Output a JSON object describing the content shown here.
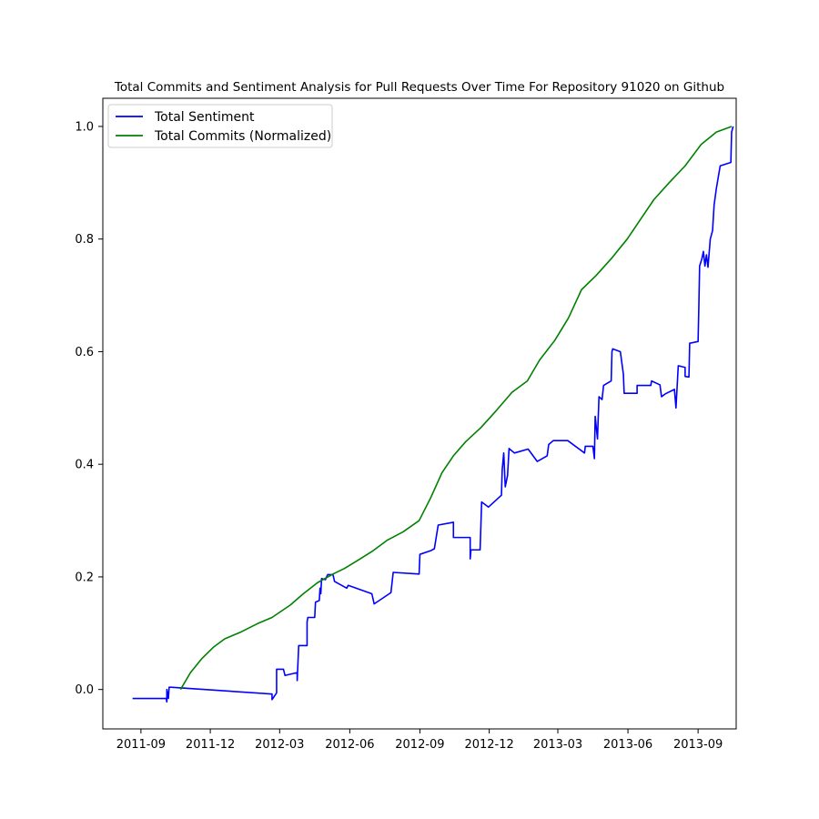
{
  "chart_data": {
    "type": "line",
    "title": "Total Commits and Sentiment Analysis for Pull Requests Over Time For Repository 91020 on Github",
    "xlabel": "",
    "ylabel": "",
    "x_range": [
      "2011-07-13",
      "2013-10-21"
    ],
    "ylim": [
      -0.07,
      1.05
    ],
    "x_ticks": [
      "2011-09",
      "2011-12",
      "2012-03",
      "2012-06",
      "2012-09",
      "2012-12",
      "2013-03",
      "2013-06",
      "2013-09"
    ],
    "y_ticks": [
      "0.0",
      "0.2",
      "0.4",
      "0.6",
      "0.8",
      "1.0"
    ],
    "grid": false,
    "legend_position": "top-left",
    "legend": [
      "Total Sentiment",
      "Total Commits (Normalized)"
    ],
    "series": [
      {
        "name": "Total Sentiment",
        "color": "#0000ff",
        "points": [
          [
            "2011-08-21",
            -0.016
          ],
          [
            "2011-10-04",
            -0.016
          ],
          [
            "2011-10-05",
            -0.022
          ],
          [
            "2011-10-05",
            0.0
          ],
          [
            "2011-10-07",
            -0.016
          ],
          [
            "2011-10-08",
            0.004
          ],
          [
            "2011-10-10",
            0.004
          ],
          [
            "2012-02-20",
            -0.008
          ],
          [
            "2012-02-20",
            -0.018
          ],
          [
            "2012-02-26",
            -0.006
          ],
          [
            "2012-02-26",
            0.036
          ],
          [
            "2012-03-06",
            0.036
          ],
          [
            "2012-03-08",
            0.025
          ],
          [
            "2012-03-24",
            0.03
          ],
          [
            "2012-03-24",
            0.016
          ],
          [
            "2012-03-26",
            0.078
          ],
          [
            "2012-04-06",
            0.078
          ],
          [
            "2012-04-06",
            0.12
          ],
          [
            "2012-04-07",
            0.128
          ],
          [
            "2012-04-16",
            0.128
          ],
          [
            "2012-04-17",
            0.155
          ],
          [
            "2012-04-22",
            0.158
          ],
          [
            "2012-04-23",
            0.18
          ],
          [
            "2012-04-24",
            0.17
          ],
          [
            "2012-04-25",
            0.197
          ],
          [
            "2012-04-30",
            0.195
          ],
          [
            "2012-05-03",
            0.204
          ],
          [
            "2012-05-10",
            0.204
          ],
          [
            "2012-05-12",
            0.192
          ],
          [
            "2012-05-28",
            0.18
          ],
          [
            "2012-05-30",
            0.185
          ],
          [
            "2012-06-30",
            0.17
          ],
          [
            "2012-07-03",
            0.152
          ],
          [
            "2012-07-25",
            0.172
          ],
          [
            "2012-07-28",
            0.208
          ],
          [
            "2012-08-31",
            0.205
          ],
          [
            "2012-09-01",
            0.24
          ],
          [
            "2012-09-16",
            0.247
          ],
          [
            "2012-09-20",
            0.25
          ],
          [
            "2012-09-25",
            0.292
          ],
          [
            "2012-10-15",
            0.297
          ],
          [
            "2012-10-15",
            0.27
          ],
          [
            "2012-11-06",
            0.27
          ],
          [
            "2012-11-06",
            0.232
          ],
          [
            "2012-11-07",
            0.248
          ],
          [
            "2012-11-19",
            0.248
          ],
          [
            "2012-11-20",
            0.29
          ],
          [
            "2012-11-21",
            0.333
          ],
          [
            "2012-11-30",
            0.324
          ],
          [
            "2012-12-17",
            0.345
          ],
          [
            "2012-12-18",
            0.39
          ],
          [
            "2012-12-20",
            0.42
          ],
          [
            "2012-12-22",
            0.36
          ],
          [
            "2012-12-25",
            0.38
          ],
          [
            "2012-12-27",
            0.428
          ],
          [
            "2013-01-03",
            0.42
          ],
          [
            "2013-01-21",
            0.427
          ],
          [
            "2013-02-02",
            0.405
          ],
          [
            "2013-02-15",
            0.415
          ],
          [
            "2013-02-17",
            0.435
          ],
          [
            "2013-02-23",
            0.442
          ],
          [
            "2013-03-14",
            0.442
          ],
          [
            "2013-04-05",
            0.42
          ],
          [
            "2013-04-06",
            0.432
          ],
          [
            "2013-04-16",
            0.432
          ],
          [
            "2013-04-18",
            0.41
          ],
          [
            "2013-04-19",
            0.485
          ],
          [
            "2013-04-22",
            0.445
          ],
          [
            "2013-04-24",
            0.52
          ],
          [
            "2013-04-28",
            0.515
          ],
          [
            "2013-04-30",
            0.54
          ],
          [
            "2013-05-10",
            0.548
          ],
          [
            "2013-05-11",
            0.6
          ],
          [
            "2013-05-12",
            0.605
          ],
          [
            "2013-05-22",
            0.6
          ],
          [
            "2013-05-26",
            0.56
          ],
          [
            "2013-05-27",
            0.526
          ],
          [
            "2013-06-13",
            0.526
          ],
          [
            "2013-06-13",
            0.54
          ],
          [
            "2013-07-01",
            0.54
          ],
          [
            "2013-07-02",
            0.548
          ],
          [
            "2013-07-13",
            0.541
          ],
          [
            "2013-07-15",
            0.52
          ],
          [
            "2013-07-20",
            0.525
          ],
          [
            "2013-08-01",
            0.533
          ],
          [
            "2013-08-03",
            0.5
          ],
          [
            "2013-08-06",
            0.575
          ],
          [
            "2013-08-15",
            0.572
          ],
          [
            "2013-08-15",
            0.556
          ],
          [
            "2013-08-20",
            0.555
          ],
          [
            "2013-08-21",
            0.615
          ],
          [
            "2013-09-01",
            0.618
          ],
          [
            "2013-09-02",
            0.68
          ],
          [
            "2013-09-03",
            0.752
          ],
          [
            "2013-09-06",
            0.765
          ],
          [
            "2013-09-08",
            0.778
          ],
          [
            "2013-09-10",
            0.752
          ],
          [
            "2013-09-12",
            0.772
          ],
          [
            "2013-09-14",
            0.75
          ],
          [
            "2013-09-17",
            0.8
          ],
          [
            "2013-09-20",
            0.815
          ],
          [
            "2013-09-22",
            0.86
          ],
          [
            "2013-09-25",
            0.89
          ],
          [
            "2013-09-30",
            0.93
          ],
          [
            "2013-10-14",
            0.936
          ],
          [
            "2013-10-15",
            0.99
          ],
          [
            "2013-10-17",
            1.0
          ]
        ]
      },
      {
        "name": "Total Commits (Normalized)",
        "color": "#008000",
        "points": [
          [
            "2011-10-23",
            0.0
          ],
          [
            "2011-11-05",
            0.03
          ],
          [
            "2011-11-20",
            0.055
          ],
          [
            "2011-12-05",
            0.075
          ],
          [
            "2011-12-20",
            0.09
          ],
          [
            "2012-01-10",
            0.102
          ],
          [
            "2012-02-01",
            0.117
          ],
          [
            "2012-02-20",
            0.128
          ],
          [
            "2012-03-15",
            0.15
          ],
          [
            "2012-04-01",
            0.17
          ],
          [
            "2012-04-20",
            0.19
          ],
          [
            "2012-05-10",
            0.205
          ],
          [
            "2012-05-25",
            0.215
          ],
          [
            "2012-06-10",
            0.228
          ],
          [
            "2012-06-30",
            0.245
          ],
          [
            "2012-07-20",
            0.265
          ],
          [
            "2012-08-10",
            0.28
          ],
          [
            "2012-08-31",
            0.3
          ],
          [
            "2012-09-15",
            0.34
          ],
          [
            "2012-09-30",
            0.385
          ],
          [
            "2012-10-15",
            0.415
          ],
          [
            "2012-10-31",
            0.44
          ],
          [
            "2012-11-20",
            0.465
          ],
          [
            "2012-12-10",
            0.495
          ],
          [
            "2012-12-31",
            0.528
          ],
          [
            "2013-01-20",
            0.548
          ],
          [
            "2013-02-05",
            0.585
          ],
          [
            "2013-02-25",
            0.62
          ],
          [
            "2013-03-15",
            0.66
          ],
          [
            "2013-04-01",
            0.71
          ],
          [
            "2013-04-20",
            0.735
          ],
          [
            "2013-05-10",
            0.765
          ],
          [
            "2013-05-31",
            0.8
          ],
          [
            "2013-06-20",
            0.84
          ],
          [
            "2013-07-05",
            0.87
          ],
          [
            "2013-07-25",
            0.9
          ],
          [
            "2013-08-15",
            0.93
          ],
          [
            "2013-09-05",
            0.968
          ],
          [
            "2013-09-25",
            0.99
          ],
          [
            "2013-10-15",
            1.0
          ]
        ]
      }
    ]
  }
}
